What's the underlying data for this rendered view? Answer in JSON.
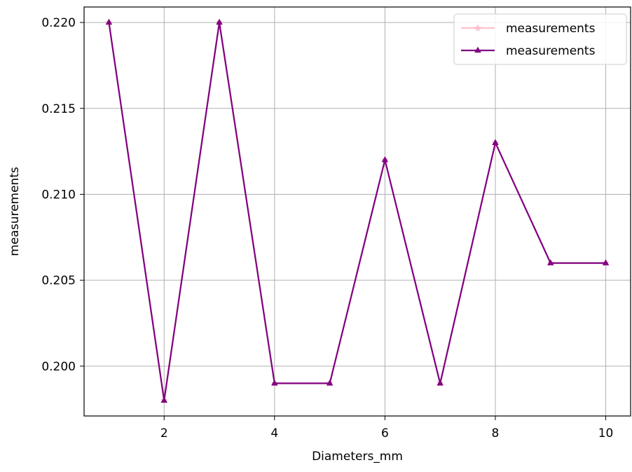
{
  "chart_data": {
    "type": "line",
    "title": "",
    "xlabel": "Diameters_mm",
    "ylabel": "measurements",
    "x": [
      1,
      2,
      3,
      4,
      5,
      6,
      7,
      8,
      9,
      10
    ],
    "xlim": [
      0.55,
      10.45
    ],
    "ylim": [
      0.1971,
      0.2209
    ],
    "xticks": [
      2,
      4,
      6,
      8,
      10
    ],
    "yticks": [
      0.2,
      0.205,
      0.21,
      0.215,
      0.22
    ],
    "ytick_labels": [
      "0.200",
      "0.205",
      "0.210",
      "0.215",
      "0.220"
    ],
    "xtick_labels": [
      "2",
      "4",
      "6",
      "8",
      "10"
    ],
    "grid": true,
    "legend_position": "top-right",
    "series": [
      {
        "name": "measurements",
        "color": "#ffc0cb",
        "marker": "star",
        "values": [
          0.22,
          0.198,
          0.22,
          0.199,
          0.199,
          0.212,
          0.199,
          0.213,
          0.206,
          0.206
        ]
      },
      {
        "name": "measurements",
        "color": "#800080",
        "marker": "triangle",
        "values": [
          0.22,
          0.198,
          0.22,
          0.199,
          0.199,
          0.212,
          0.199,
          0.213,
          0.206,
          0.206
        ]
      }
    ]
  }
}
